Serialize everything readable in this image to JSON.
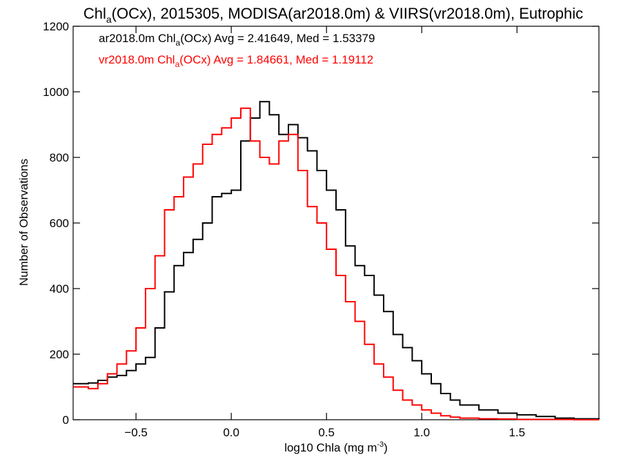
{
  "chart_data": {
    "type": "line",
    "title": {
      "prefix": "Chl",
      "sub": "a",
      "suffix": "(OCx), 2015305, MODISA(ar2018.0m) & VIIRS(vr2018.0m), Eutrophic"
    },
    "xlabel": {
      "text": "log10 Chla (mg m",
      "sup": "-3",
      "close": ")"
    },
    "ylabel": "Number of Observations",
    "xlim": [
      -0.83,
      1.93
    ],
    "ylim": [
      0,
      1200
    ],
    "xticks": [
      -0.5,
      0.0,
      0.5,
      1.0,
      1.5
    ],
    "xtick_labels": [
      "−0.5",
      "0.0",
      "0.5",
      "1.0",
      "1.5"
    ],
    "yticks": [
      0,
      200,
      400,
      600,
      800,
      1000,
      1200
    ],
    "ytick_labels": [
      "0",
      "200",
      "400",
      "600",
      "800",
      "1000",
      "1200"
    ],
    "grid": false,
    "legend_position": "top-left",
    "series": [
      {
        "color": "#000000",
        "legend": {
          "pre": "ar2018.0m Chl",
          "sub": "a",
          "post": "(OCx) Avg = 2.41649, Med = 1.53379"
        },
        "x": [
          -0.83,
          -0.75,
          -0.7,
          -0.65,
          -0.6,
          -0.55,
          -0.5,
          -0.45,
          -0.4,
          -0.35,
          -0.3,
          -0.25,
          -0.2,
          -0.15,
          -0.1,
          -0.05,
          0.0,
          0.05,
          0.1,
          0.15,
          0.2,
          0.25,
          0.3,
          0.35,
          0.4,
          0.45,
          0.5,
          0.55,
          0.6,
          0.65,
          0.7,
          0.75,
          0.8,
          0.85,
          0.9,
          0.95,
          1.0,
          1.05,
          1.1,
          1.15,
          1.2,
          1.3,
          1.4,
          1.5,
          1.6,
          1.7,
          1.8,
          1.93
        ],
        "y": [
          110,
          112,
          120,
          130,
          135,
          150,
          170,
          190,
          280,
          390,
          470,
          510,
          550,
          600,
          680,
          690,
          700,
          850,
          920,
          970,
          930,
          870,
          900,
          860,
          820,
          760,
          700,
          640,
          530,
          470,
          440,
          380,
          330,
          260,
          220,
          180,
          140,
          110,
          80,
          60,
          45,
          30,
          20,
          15,
          10,
          5,
          3,
          2
        ]
      },
      {
        "color": "#ff0000",
        "legend": {
          "pre": "vr2018.0m Chl",
          "sub": "a",
          "post": "(OCx) Avg = 1.84661, Med = 1.19112"
        },
        "x": [
          -0.83,
          -0.75,
          -0.7,
          -0.65,
          -0.6,
          -0.55,
          -0.5,
          -0.45,
          -0.4,
          -0.35,
          -0.3,
          -0.25,
          -0.2,
          -0.15,
          -0.1,
          -0.05,
          0.0,
          0.05,
          0.1,
          0.15,
          0.2,
          0.25,
          0.3,
          0.35,
          0.4,
          0.45,
          0.5,
          0.55,
          0.6,
          0.65,
          0.7,
          0.75,
          0.8,
          0.85,
          0.9,
          0.95,
          1.0,
          1.05,
          1.1,
          1.15,
          1.2,
          1.3,
          1.4,
          1.5,
          1.6,
          1.7,
          1.8,
          1.93
        ],
        "y": [
          100,
          95,
          110,
          140,
          170,
          210,
          280,
          400,
          500,
          640,
          680,
          740,
          780,
          840,
          870,
          890,
          920,
          950,
          850,
          800,
          780,
          850,
          870,
          760,
          650,
          600,
          520,
          440,
          360,
          300,
          230,
          170,
          130,
          90,
          60,
          45,
          30,
          20,
          12,
          8,
          5,
          3,
          2,
          1,
          1,
          1,
          0,
          0
        ]
      }
    ]
  }
}
